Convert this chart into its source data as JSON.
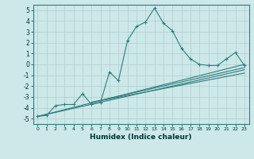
{
  "xlabel": "Humidex (Indice chaleur)",
  "bg_color": "#cce8e8",
  "grid_color": "#b0cccc",
  "line_color": "#2e7d7d",
  "xlim": [
    -0.5,
    23.5
  ],
  "ylim": [
    -5.5,
    5.5
  ],
  "xticks": [
    0,
    1,
    2,
    3,
    4,
    5,
    6,
    7,
    8,
    9,
    10,
    11,
    12,
    13,
    14,
    15,
    16,
    17,
    18,
    19,
    20,
    21,
    22,
    23
  ],
  "yticks": [
    -5,
    -4,
    -3,
    -2,
    -1,
    0,
    1,
    2,
    3,
    4,
    5
  ],
  "main_series": [
    [
      0,
      -4.8
    ],
    [
      1,
      -4.7
    ],
    [
      2,
      -3.8
    ],
    [
      3,
      -3.7
    ],
    [
      4,
      -3.7
    ],
    [
      5,
      -2.7
    ],
    [
      6,
      -3.7
    ],
    [
      7,
      -3.5
    ],
    [
      8,
      -0.7
    ],
    [
      9,
      -1.5
    ],
    [
      10,
      2.2
    ],
    [
      11,
      3.5
    ],
    [
      12,
      3.9
    ],
    [
      13,
      5.2
    ],
    [
      14,
      3.8
    ],
    [
      15,
      3.1
    ],
    [
      16,
      1.5
    ],
    [
      17,
      0.5
    ],
    [
      18,
      0.0
    ],
    [
      19,
      -0.1
    ],
    [
      20,
      -0.1
    ],
    [
      21,
      0.5
    ],
    [
      22,
      1.1
    ],
    [
      23,
      -0.1
    ]
  ],
  "linear_lines": [
    [
      [
        0,
        -4.8
      ],
      [
        23,
        0.0
      ]
    ],
    [
      [
        0,
        -4.8
      ],
      [
        23,
        -0.5
      ]
    ],
    [
      [
        6,
        -3.5
      ],
      [
        23,
        -0.3
      ]
    ],
    [
      [
        6,
        -3.5
      ],
      [
        23,
        -0.8
      ]
    ]
  ]
}
